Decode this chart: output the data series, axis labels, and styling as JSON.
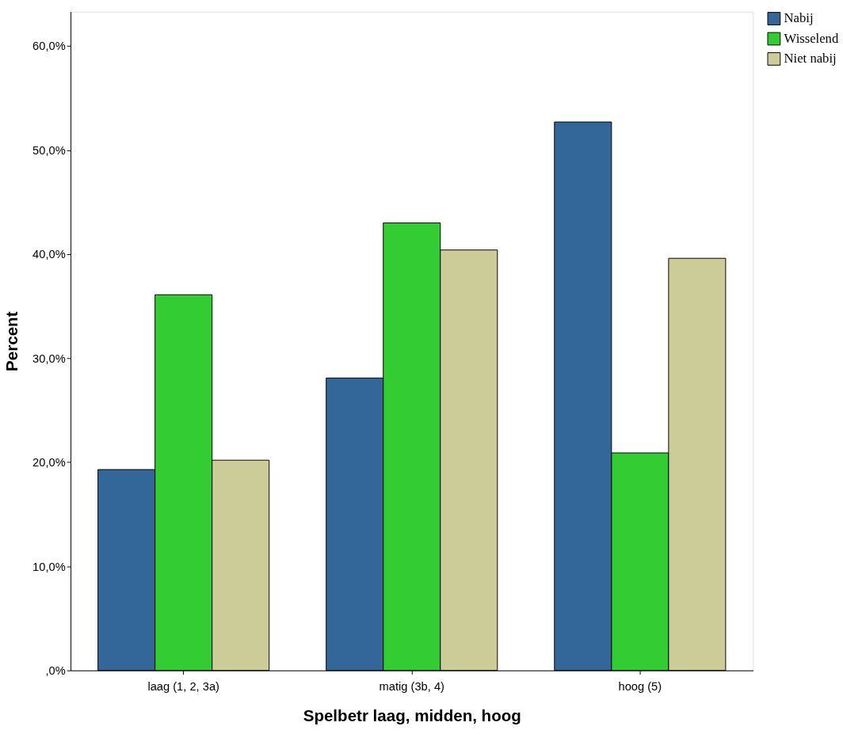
{
  "chart_data": {
    "type": "bar",
    "xlabel": "Spelbetr laag, midden, hoog",
    "ylabel": "Percent",
    "categories": [
      "laag (1, 2, 3a)",
      "matig (3b, 4)",
      "hoog (5)"
    ],
    "series": [
      {
        "name": "Nabij",
        "color": "#336699",
        "values": [
          19.3,
          28.1,
          52.7
        ]
      },
      {
        "name": "Wisselend",
        "color": "#33cc33",
        "values": [
          36.1,
          43.0,
          20.9
        ]
      },
      {
        "name": "Niet nabij",
        "color": "#cccc99",
        "values": [
          20.2,
          40.4,
          39.6
        ]
      }
    ],
    "ylim": [
      0,
      63.3
    ],
    "yticks": [
      {
        "value": 0,
        "label": ",0%"
      },
      {
        "value": 10,
        "label": "10,0%"
      },
      {
        "value": 20,
        "label": "20,0%"
      },
      {
        "value": 30,
        "label": "30,0%"
      },
      {
        "value": 40,
        "label": "40,0%"
      },
      {
        "value": 50,
        "label": "50,0%"
      },
      {
        "value": 60,
        "label": "60,0%"
      }
    ],
    "grid": false,
    "legend": "top right"
  }
}
